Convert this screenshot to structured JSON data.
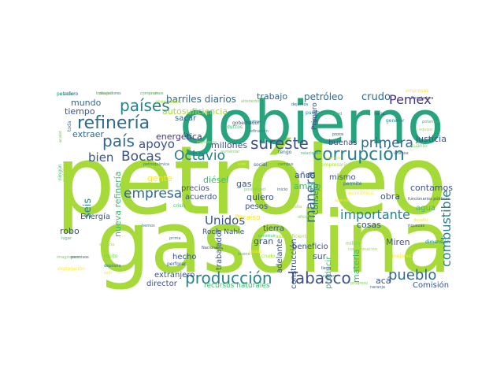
{
  "palette": {
    "lime": "#a5da38",
    "teal": "#27a37d",
    "green": "#3fb96e",
    "cyan": "#26828e",
    "blue": "#31688e",
    "navy": "#3b528b",
    "indigo": "#433e85",
    "purple": "#46327e",
    "dark": "#440154",
    "yellow": "#fde725",
    "lightgreen": "#7ad151",
    "sea": "#1fa187"
  },
  "words": {
    "petroleo": "petróleo",
    "gasolina": "gasolina",
    "gobierno": "gobierno",
    "refineria": "refinería",
    "paises": "países",
    "pais": "país",
    "sureste": "sureste",
    "corrupcion": "corrupción",
    "octavio": "Octavio",
    "bocas": "Bocas",
    "bien": "bien",
    "apoyo": "apoyo",
    "empresa": "empresa",
    "produccion": "producción",
    "tabasco": "Tabasco",
    "pueblo": "pueblo",
    "importante": "importante",
    "combustible": "combustible",
    "unidos": "Unidos",
    "manera": "manera",
    "primera": "primera",
    "pemex": "Pemex",
    "barriles": "barriles diarios",
    "trabajo": "trabajo",
    "petroleo2": "petróleo",
    "crudo": "crudo",
    "mundo": "mundo",
    "tiempo": "tiempo",
    "autosuficiencia": "autosuficiencia",
    "sacar": "sacar",
    "energetica": "energética",
    "extraer": "extraer",
    "millones": "millones",
    "seis": "seis",
    "gente": "gente",
    "nueva_refineria": "nueva refinería",
    "energia": "Energía",
    "robo": "robo",
    "hecho": "hecho",
    "extranjero": "extranjero",
    "director": "director",
    "recursos": "recursos naturales",
    "acuerdo": "acuerdo",
    "quiero": "quiero",
    "pesos": "pesos",
    "diesel": "diésel",
    "precios": "precios",
    "gas": "gas",
    "rocio": "Rocío Nahle",
    "tierra": "tierra",
    "paraiso": "Paraíso",
    "gran": "gran",
    "trabajador": "trabajador",
    "construccion": "construcción",
    "adelante": "adelante",
    "beneficio": "beneficio",
    "producir": "producir",
    "sur": "sur",
    "miren": "Miren",
    "aca": "acá",
    "comision": "Comisión",
    "materia": "materia",
    "cosas": "cosas",
    "consejo": "Consejo",
    "obra": "obra",
    "mismo": "mismo",
    "amigo": "amigo",
    "anos": "años",
    "agua": "agua",
    "contamos": "contamos",
    "justicia": "justicia",
    "buenas": "buenas",
    "primero": "Primero"
  },
  "small_words": [
    "petrolero",
    "trabajadores",
    "compramos",
    "mexicanos",
    "alrededor",
    "dejamos",
    "empresas",
    "Reguladora",
    "refinación",
    "ductos",
    "ingeniería",
    "aumentar",
    "tengo",
    "siempre",
    "hacia",
    "generar",
    "potencia",
    "equipo",
    "cuánto",
    "últimos",
    "sólo",
    "social",
    "campus",
    "relaciones",
    "empresarios",
    "posibilidad",
    "inicio",
    "económico",
    "funcionarios públicos",
    "petroquímica",
    "crisis",
    "falta",
    "oficinas",
    "permite",
    "desafío",
    "riquezas",
    "dimensión",
    "lugar",
    "servicio",
    "repito",
    "depósito",
    "salir",
    "perforar",
    "prima",
    "bueno",
    "crudo",
    "progreso",
    "naranja",
    "mejores",
    "llega",
    "cultura",
    "ningún",
    "ciudadano",
    "acabó",
    "toda",
    "ciudad",
    "cambio",
    "puedan",
    "normalidad",
    "contaminación",
    "millón",
    "pozos",
    "aparato",
    "gobernador",
    "nuestras",
    "construir",
    "autosuficientes",
    "imaginense",
    "permisos",
    "exploración",
    "Nacional",
    "hemos",
    "pasado",
    "momento",
    "comercio"
  ]
}
